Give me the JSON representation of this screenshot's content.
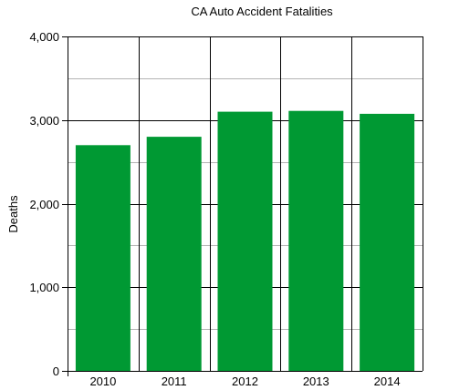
{
  "chart_data": {
    "type": "bar",
    "title": "CA Auto Accident Fatalities",
    "xlabel": "",
    "ylabel": "Deaths",
    "categories": [
      "2010",
      "2011",
      "2012",
      "2013",
      "2014"
    ],
    "values": [
      2700,
      2800,
      3100,
      3110,
      3075
    ],
    "ylim": [
      0,
      4000
    ],
    "yticks": [
      0,
      1000,
      2000,
      3000,
      4000
    ],
    "ytick_labels": [
      "0",
      "1,000",
      "2,000",
      "3,000",
      "4,000"
    ],
    "minor_gridlines": [
      500,
      1500,
      2500,
      3500
    ],
    "grid": true,
    "legend": "none",
    "colors": {
      "bar": "#009933",
      "major_grid": "#000000",
      "minor_grid": "#b3b3b3",
      "axis": "#000000"
    }
  }
}
